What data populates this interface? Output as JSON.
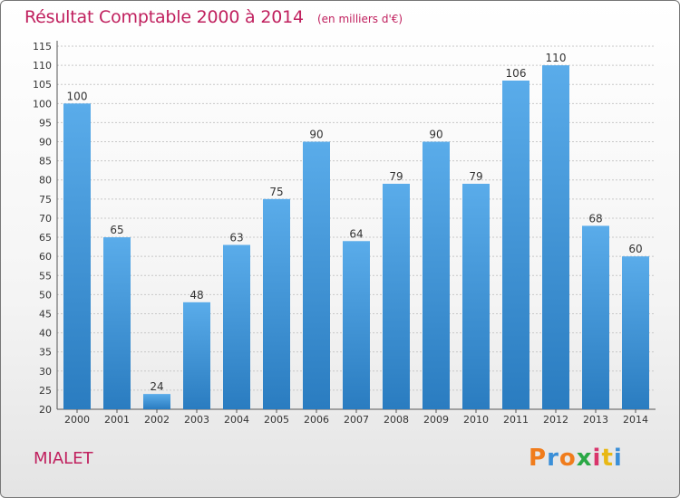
{
  "header": {
    "title": "Résultat Comptable 2000 à 2014",
    "subtitle": "(en milliers d'€)"
  },
  "footer": {
    "town": "MIALET",
    "logo_text": "Proxiti",
    "logo_letter_colors": [
      "#f07c1c",
      "#3a8fd8",
      "#f07c1c",
      "#2aa845",
      "#d9356b",
      "#e8b814",
      "#3a8fd8"
    ]
  },
  "colors": {
    "bar_top": "#5aacea",
    "bar_bottom": "#2a7cc0",
    "title": "#c0205e",
    "grid": "#c8c8c8"
  },
  "chart_data": {
    "type": "bar",
    "title": "Résultat Comptable 2000 à 2014",
    "categories": [
      "2000",
      "2001",
      "2002",
      "2003",
      "2004",
      "2005",
      "2006",
      "2007",
      "2008",
      "2009",
      "2010",
      "2011",
      "2012",
      "2013",
      "2014"
    ],
    "values": [
      100,
      65,
      24,
      48,
      63,
      75,
      90,
      64,
      79,
      90,
      79,
      106,
      110,
      68,
      60
    ],
    "xlabel": "",
    "ylabel": "",
    "ylim": [
      20,
      115
    ],
    "yticks": [
      20,
      25,
      30,
      35,
      40,
      45,
      50,
      55,
      60,
      65,
      70,
      75,
      80,
      85,
      90,
      95,
      100,
      105,
      110,
      115
    ],
    "grid": true,
    "data_labels": true
  }
}
